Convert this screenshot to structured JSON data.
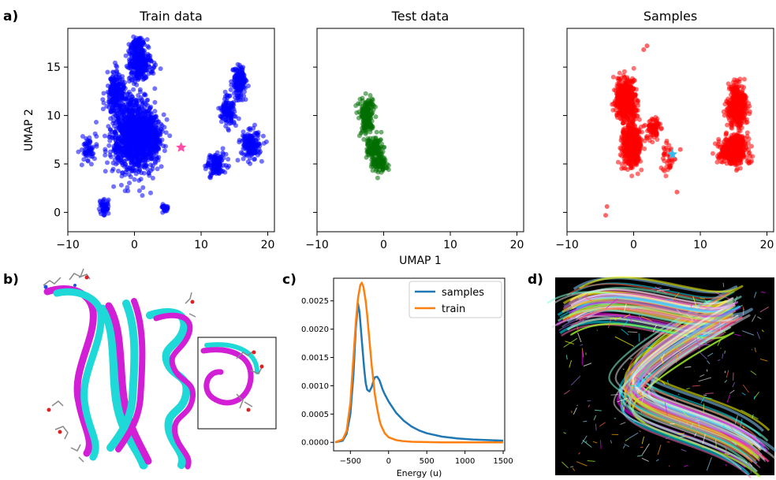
{
  "panel_labels": {
    "a": "a)",
    "b": "b)",
    "c": "c)",
    "d": "d)"
  },
  "chart_data": [
    {
      "type": "scatter",
      "title": "Train data",
      "ylabel": "UMAP 2",
      "xlim": [
        -10,
        21
      ],
      "ylim": [
        -2,
        19
      ],
      "xticks": [
        -10,
        0,
        10,
        20
      ],
      "yticks": [
        0,
        5,
        10,
        15
      ],
      "color": "#0000ff",
      "marker": {
        "x": 7,
        "y": 6.7,
        "color": "#ff4da6",
        "shape": "star"
      },
      "clusters": [
        {
          "x": 0,
          "y": 8,
          "sx": 3.0,
          "sy": 3.4,
          "n": 1300
        },
        {
          "x": -2.8,
          "y": 12.5,
          "sx": 1.2,
          "sy": 1.6,
          "n": 240
        },
        {
          "x": 0.8,
          "y": 15.3,
          "sx": 1.6,
          "sy": 1.4,
          "n": 260
        },
        {
          "x": 0.3,
          "y": 17.3,
          "sx": 1.0,
          "sy": 0.6,
          "n": 90
        },
        {
          "x": 3.0,
          "y": 7.5,
          "sx": 1.0,
          "sy": 1.5,
          "n": 110
        },
        {
          "x": -6.8,
          "y": 6.5,
          "sx": 1.0,
          "sy": 1.2,
          "n": 60
        },
        {
          "x": -4.6,
          "y": 0.6,
          "sx": 0.6,
          "sy": 0.9,
          "n": 55
        },
        {
          "x": 4.5,
          "y": 0.5,
          "sx": 0.5,
          "sy": 0.35,
          "n": 25
        },
        {
          "x": 15.8,
          "y": 13.5,
          "sx": 1.0,
          "sy": 1.4,
          "n": 170
        },
        {
          "x": 14.0,
          "y": 10.5,
          "sx": 1.0,
          "sy": 1.5,
          "n": 130
        },
        {
          "x": 17.5,
          "y": 7.0,
          "sx": 1.3,
          "sy": 1.3,
          "n": 170
        },
        {
          "x": 12.3,
          "y": 5.0,
          "sx": 1.3,
          "sy": 1.1,
          "n": 130
        }
      ]
    },
    {
      "type": "scatter",
      "title": "Test data",
      "xlabel": "UMAP 1",
      "xlim": [
        -10,
        21
      ],
      "ylim": [
        -2,
        19
      ],
      "xticks": [
        -10,
        0,
        10,
        20
      ],
      "color": "#007000",
      "clusters": [
        {
          "x": -2.5,
          "y": 10.0,
          "sx": 1.0,
          "sy": 1.6,
          "n": 180
        },
        {
          "x": -1.5,
          "y": 6.5,
          "sx": 1.0,
          "sy": 1.2,
          "n": 150
        },
        {
          "x": -0.5,
          "y": 5.0,
          "sx": 1.0,
          "sy": 0.7,
          "n": 80
        }
      ]
    },
    {
      "type": "scatter",
      "title": "Samples",
      "xlim": [
        -10,
        21
      ],
      "ylim": [
        -2,
        19
      ],
      "xticks": [
        -10,
        0,
        10,
        20
      ],
      "color": "#ff0000",
      "marker": {
        "x": 5.8,
        "y": 6.0,
        "color": "#33bbee",
        "shape": "star"
      },
      "clusters": [
        {
          "x": -1.2,
          "y": 11.5,
          "sx": 1.4,
          "sy": 2.0,
          "n": 500
        },
        {
          "x": -0.3,
          "y": 6.8,
          "sx": 1.3,
          "sy": 2.0,
          "n": 500
        },
        {
          "x": 3.0,
          "y": 8.5,
          "sx": 1.0,
          "sy": 1.3,
          "n": 80
        },
        {
          "x": 5.0,
          "y": 5.5,
          "sx": 0.8,
          "sy": 1.4,
          "n": 40
        },
        {
          "x": 15.5,
          "y": 11.0,
          "sx": 1.2,
          "sy": 2.0,
          "n": 450
        },
        {
          "x": 15.0,
          "y": 6.5,
          "sx": 2.0,
          "sy": 1.4,
          "n": 450
        }
      ],
      "outliers": [
        [
          -4,
          0.6
        ],
        [
          -4.2,
          -0.3
        ],
        [
          1.5,
          16.8
        ],
        [
          2.0,
          17.2
        ],
        [
          6.5,
          2.1
        ],
        [
          7.0,
          6.5
        ]
      ]
    },
    {
      "type": "line",
      "xlabel": "Energy (u)",
      "xlim": [
        -720,
        1520
      ],
      "ylim": [
        -0.00015,
        0.0029
      ],
      "xticks": [
        -500,
        0,
        500,
        1000,
        1500
      ],
      "yticks": [
        0.0,
        0.0005,
        0.001,
        0.0015,
        0.002,
        0.0025
      ],
      "ytick_labels": [
        "0.0000",
        "0.0005",
        "0.0010",
        "0.0015",
        "0.0020",
        "0.0025"
      ],
      "legend": "top-right",
      "series": [
        {
          "name": "samples",
          "color": "#1f77b4",
          "x": [
            -700,
            -600,
            -550,
            -500,
            -460,
            -430,
            -400,
            -380,
            -350,
            -320,
            -300,
            -280,
            -250,
            -220,
            -200,
            -180,
            -150,
            -120,
            -100,
            -80,
            -50,
            0,
            100,
            200,
            300,
            400,
            500,
            700,
            900,
            1100,
            1300,
            1500
          ],
          "y": [
            0.0,
            3e-05,
            0.00015,
            0.0005,
            0.0012,
            0.002,
            0.00245,
            0.0023,
            0.0018,
            0.0013,
            0.00105,
            0.00093,
            0.0009,
            0.00098,
            0.00108,
            0.00115,
            0.00116,
            0.0011,
            0.00102,
            0.00094,
            0.00085,
            0.00072,
            0.00052,
            0.00038,
            0.00028,
            0.00021,
            0.00016,
            0.0001,
            7e-05,
            5e-05,
            4e-05,
            3e-05
          ]
        },
        {
          "name": "train",
          "color": "#ff7f0e",
          "x": [
            -700,
            -600,
            -550,
            -500,
            -460,
            -430,
            -400,
            -370,
            -350,
            -330,
            -300,
            -280,
            -250,
            -220,
            -200,
            -180,
            -150,
            -120,
            -100,
            -50,
            0,
            100,
            200,
            300,
            500,
            700,
            1000,
            1500
          ],
          "y": [
            0.0,
            5e-05,
            0.0002,
            0.0007,
            0.0015,
            0.0021,
            0.00255,
            0.00278,
            0.00282,
            0.00275,
            0.0025,
            0.00225,
            0.0018,
            0.00135,
            0.0011,
            0.00085,
            0.0006,
            0.0004,
            0.0003,
            0.00016,
            9e-05,
            4e-05,
            2e-05,
            1e-05,
            5e-06,
            0.0,
            0.0,
            0.0
          ]
        }
      ]
    }
  ]
}
